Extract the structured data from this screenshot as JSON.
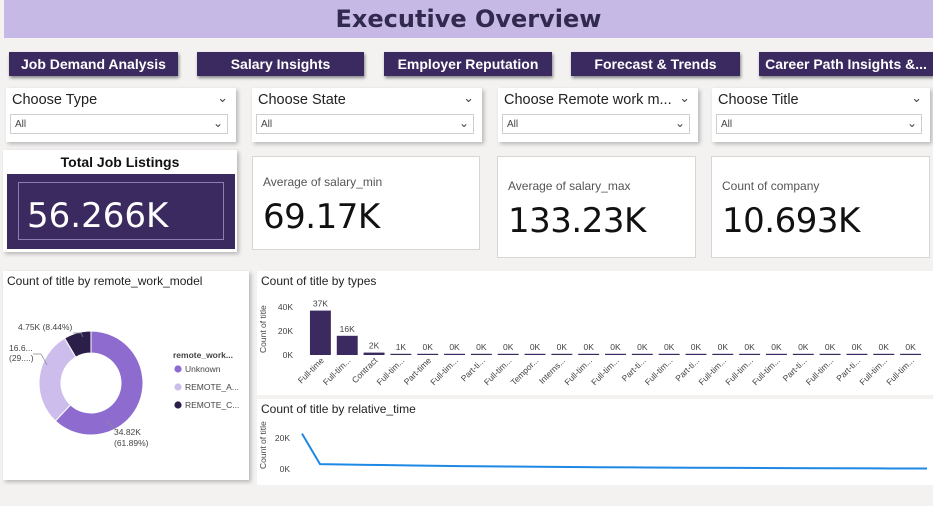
{
  "header": {
    "title": "Executive Overview"
  },
  "nav": [
    {
      "label": "Job Demand Analysis"
    },
    {
      "label": "Salary Insights"
    },
    {
      "label": "Employer Reputation"
    },
    {
      "label": "Forecast & Trends"
    },
    {
      "label": "Career Path Insights &..."
    }
  ],
  "slicers": [
    {
      "title": "Choose Type",
      "value": "All"
    },
    {
      "title": "Choose State",
      "value": "All"
    },
    {
      "title": "Choose Remote work m...",
      "value": "All"
    },
    {
      "title": "Choose Title",
      "value": "All"
    }
  ],
  "kpis": {
    "total": {
      "label": "Total Job Listings",
      "value": "56.266K"
    },
    "salary_min": {
      "label": "Average of salary_min",
      "value": "69.17K"
    },
    "salary_max": {
      "label": "Average of salary_max",
      "value": "133.23K"
    },
    "company": {
      "label": "Count of company",
      "value": "10.693K"
    }
  },
  "icons": {
    "dropdown": "chevron-down-icon"
  },
  "colors": {
    "accent": "#3b2a5f",
    "banner": "#c6b9e6",
    "kpi_fill": "#3b2a5f",
    "line": "#1e88e5"
  },
  "chart_data": [
    {
      "type": "pie",
      "variant": "donut",
      "title": "Count of title by remote_work_model",
      "legend_title": "remote_work...",
      "legend_placement": "right",
      "slices": [
        {
          "name": "Unknown",
          "value": 34820,
          "color": "#8e6ccf"
        },
        {
          "name": "REMOTE_A...",
          "value": 16600,
          "color": "#cdbdec"
        },
        {
          "name": "REMOTE_C...",
          "value": 4750,
          "color": "#2b1f4a"
        }
      ],
      "data_labels": [
        "34.82K",
        "(61.89%)",
        "16.6...",
        "(29....)",
        "4.75K (8.44%)"
      ]
    },
    {
      "type": "bar",
      "title": "Count of title by types",
      "ylabel": "Count of title",
      "yticks": [
        "40K",
        "20K",
        "0K"
      ],
      "ylim": [
        0,
        40000
      ],
      "bar_color": "#3b2a5f",
      "categories": [
        "Full-time",
        "Full-tim...",
        "Contract",
        "Full-tim...",
        "Part-time",
        "Full-tim...",
        "Part-ti...",
        "Full-tim...",
        "Tempor...",
        "Interns...",
        "Full-tim...",
        "Full-tim...",
        "Part-ti...",
        "Full-tim...",
        "Part-ti...",
        "Full-tim...",
        "Full-tim...",
        "Full-tim...",
        "Part-ti...",
        "Full-tim...",
        "Part-ti...",
        "Full-tim...",
        "Full-tim..."
      ],
      "values": [
        37000,
        16000,
        2000,
        1000,
        0,
        0,
        0,
        0,
        0,
        0,
        0,
        0,
        0,
        0,
        0,
        0,
        0,
        0,
        0,
        0,
        0,
        0,
        0
      ],
      "data_labels": [
        "37K",
        "16K",
        "2K",
        "1K",
        "0K",
        "0K",
        "0K",
        "0K",
        "0K",
        "0K",
        "0K",
        "0K",
        "0K",
        "0K",
        "0K",
        "0K",
        "0K",
        "0K",
        "0K",
        "0K",
        "0K",
        "0K",
        "0K"
      ]
    },
    {
      "type": "line",
      "title": "Count of title by relative_time",
      "ylabel": "Count of title",
      "yticks": [
        "20K",
        "0K"
      ],
      "ylim": [
        0,
        26000
      ],
      "line_color": "#1e88e5",
      "values": [
        23000,
        3200,
        2700,
        2300,
        1900,
        1600,
        1350,
        1150,
        1000,
        850,
        700,
        580,
        470,
        380,
        300
      ]
    }
  ]
}
